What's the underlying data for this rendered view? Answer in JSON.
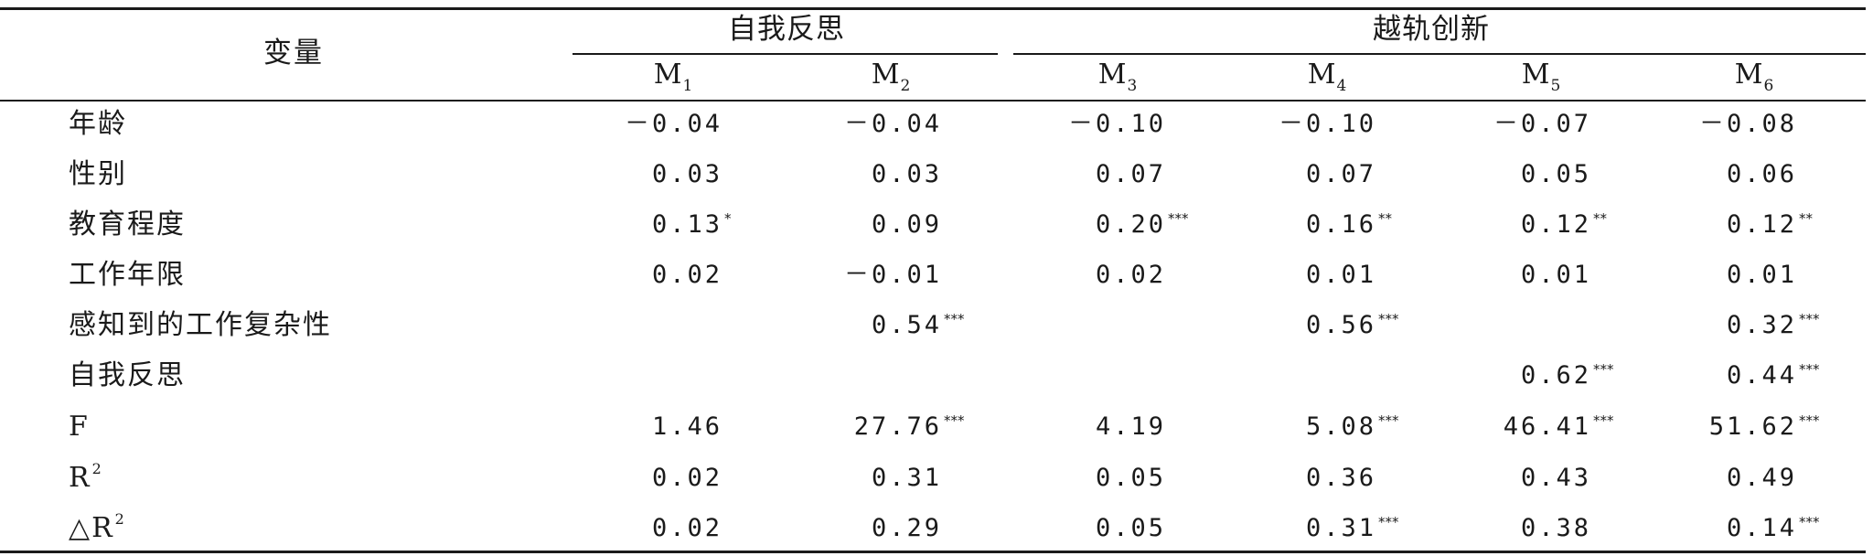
{
  "table": {
    "var_header": "变量",
    "groups": [
      {
        "label": "自我反思"
      },
      {
        "label": "越轨创新"
      }
    ],
    "models": [
      {
        "base": "M",
        "sub": "1"
      },
      {
        "base": "M",
        "sub": "2"
      },
      {
        "base": "M",
        "sub": "3"
      },
      {
        "base": "M",
        "sub": "4"
      },
      {
        "base": "M",
        "sub": "5"
      },
      {
        "base": "M",
        "sub": "6"
      }
    ],
    "rows": [
      {
        "label": "年龄",
        "sup": "",
        "cells": [
          {
            "v": "－0.04",
            "s": ""
          },
          {
            "v": "－0.04",
            "s": ""
          },
          {
            "v": "－0.10",
            "s": ""
          },
          {
            "v": "－0.10",
            "s": ""
          },
          {
            "v": "－0.07",
            "s": ""
          },
          {
            "v": "－0.08",
            "s": ""
          }
        ]
      },
      {
        "label": "性别",
        "sup": "",
        "cells": [
          {
            "v": "0.03",
            "s": ""
          },
          {
            "v": "0.03",
            "s": ""
          },
          {
            "v": "0.07",
            "s": ""
          },
          {
            "v": "0.07",
            "s": ""
          },
          {
            "v": "0.05",
            "s": ""
          },
          {
            "v": "0.06",
            "s": ""
          }
        ]
      },
      {
        "label": "教育程度",
        "sup": "",
        "cells": [
          {
            "v": "0.13",
            "s": "*"
          },
          {
            "v": "0.09",
            "s": ""
          },
          {
            "v": "0.20",
            "s": "***"
          },
          {
            "v": "0.16",
            "s": "**"
          },
          {
            "v": "0.12",
            "s": "**"
          },
          {
            "v": "0.12",
            "s": "**"
          }
        ]
      },
      {
        "label": "工作年限",
        "sup": "",
        "cells": [
          {
            "v": "0.02",
            "s": ""
          },
          {
            "v": "－0.01",
            "s": ""
          },
          {
            "v": "0.02",
            "s": ""
          },
          {
            "v": "0.01",
            "s": ""
          },
          {
            "v": "0.01",
            "s": ""
          },
          {
            "v": "0.01",
            "s": ""
          }
        ]
      },
      {
        "label": "感知到的工作复杂性",
        "sup": "",
        "cells": [
          {
            "v": "",
            "s": ""
          },
          {
            "v": "0.54",
            "s": "***"
          },
          {
            "v": "",
            "s": ""
          },
          {
            "v": "0.56",
            "s": "***"
          },
          {
            "v": "",
            "s": ""
          },
          {
            "v": "0.32",
            "s": "***"
          }
        ]
      },
      {
        "label": "自我反思",
        "sup": "",
        "cells": [
          {
            "v": "",
            "s": ""
          },
          {
            "v": "",
            "s": ""
          },
          {
            "v": "",
            "s": ""
          },
          {
            "v": "",
            "s": ""
          },
          {
            "v": "0.62",
            "s": "***"
          },
          {
            "v": "0.44",
            "s": "***"
          }
        ]
      },
      {
        "label": "F",
        "sup": "",
        "cells": [
          {
            "v": "1.46",
            "s": ""
          },
          {
            "v": "27.76",
            "s": "***"
          },
          {
            "v": "4.19",
            "s": ""
          },
          {
            "v": "5.08",
            "s": "***"
          },
          {
            "v": "46.41",
            "s": "***"
          },
          {
            "v": "51.62",
            "s": "***"
          }
        ]
      },
      {
        "label": "R",
        "sup": "2",
        "cells": [
          {
            "v": "0.02",
            "s": ""
          },
          {
            "v": "0.31",
            "s": ""
          },
          {
            "v": "0.05",
            "s": ""
          },
          {
            "v": "0.36",
            "s": ""
          },
          {
            "v": "0.43",
            "s": ""
          },
          {
            "v": "0.49",
            "s": ""
          }
        ]
      },
      {
        "label": "△R",
        "sup": "2",
        "cells": [
          {
            "v": "0.02",
            "s": ""
          },
          {
            "v": "0.29",
            "s": ""
          },
          {
            "v": "0.05",
            "s": ""
          },
          {
            "v": "0.31",
            "s": "***"
          },
          {
            "v": "0.38",
            "s": ""
          },
          {
            "v": "0.14",
            "s": "***"
          }
        ]
      }
    ]
  }
}
